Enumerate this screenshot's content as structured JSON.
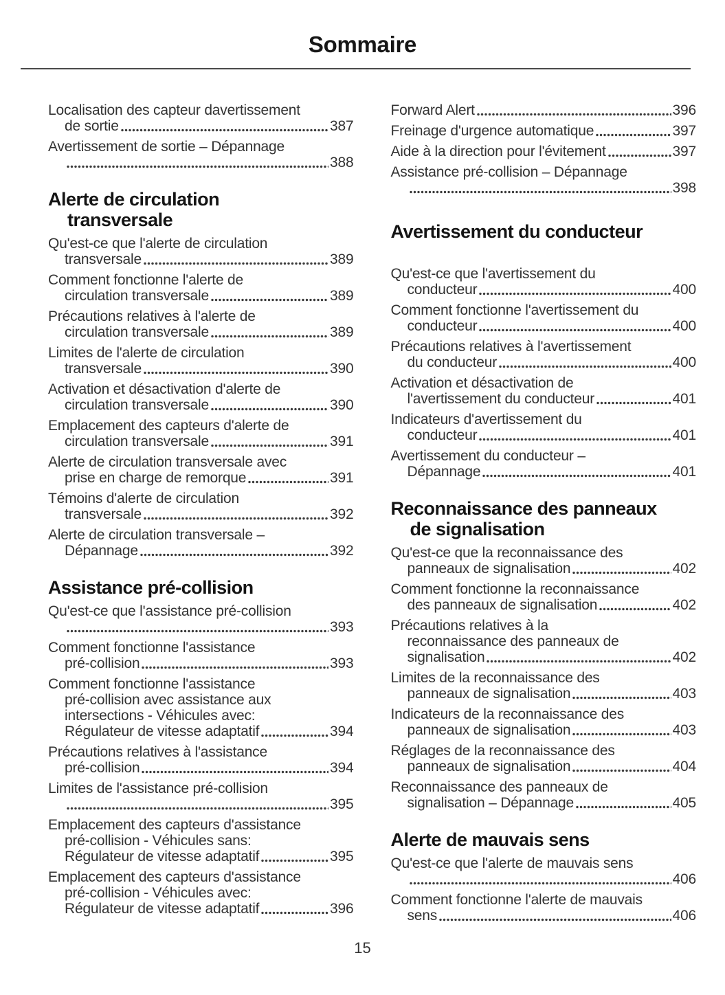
{
  "page": {
    "title": "Sommaire",
    "page_number": "15"
  },
  "columns": [
    {
      "name": "left",
      "blocks": [
        {
          "t": "entry",
          "lines": [
            "Localisation des capteur davertissement",
            "de sortie"
          ],
          "page": "387"
        },
        {
          "t": "entry",
          "lines": [
            "Avertissement de sortie – Dépannage",
            ""
          ],
          "page": "388"
        },
        {
          "t": "heading",
          "lines": [
            "Alerte de circulation",
            "transversale"
          ]
        },
        {
          "t": "entry",
          "lines": [
            "Qu'est-ce que l'alerte de circulation",
            "transversale"
          ],
          "page": "389"
        },
        {
          "t": "entry",
          "lines": [
            "Comment fonctionne l'alerte de",
            "circulation transversale"
          ],
          "page": "389"
        },
        {
          "t": "entry",
          "lines": [
            "Précautions relatives à l'alerte de",
            "circulation transversale"
          ],
          "page": "389"
        },
        {
          "t": "entry",
          "lines": [
            "Limites de l'alerte de circulation",
            "transversale"
          ],
          "page": "390"
        },
        {
          "t": "entry",
          "lines": [
            "Activation et désactivation d'alerte de",
            "circulation transversale"
          ],
          "page": "390"
        },
        {
          "t": "entry",
          "lines": [
            "Emplacement des capteurs d'alerte de",
            "circulation transversale"
          ],
          "page": "391"
        },
        {
          "t": "entry",
          "lines": [
            "Alerte de circulation transversale avec",
            "prise en charge de remorque"
          ],
          "page": "391"
        },
        {
          "t": "entry",
          "lines": [
            "Témoins d'alerte de circulation",
            "transversale"
          ],
          "page": "392"
        },
        {
          "t": "entry",
          "lines": [
            "Alerte de circulation transversale –",
            "Dépannage"
          ],
          "page": "392"
        },
        {
          "t": "heading",
          "lines": [
            "Assistance pré-collision"
          ]
        },
        {
          "t": "entry",
          "lines": [
            "Qu'est-ce que l'assistance pré-collision",
            ""
          ],
          "page": "393"
        },
        {
          "t": "entry",
          "lines": [
            "Comment fonctionne l'assistance",
            "pré-collision"
          ],
          "page": "393"
        },
        {
          "t": "entry",
          "lines": [
            "Comment fonctionne l'assistance",
            "pré-collision avec assistance aux",
            "intersections - Véhicules avec:",
            "Régulateur de vitesse adaptatif"
          ],
          "page": "394"
        },
        {
          "t": "entry",
          "lines": [
            "Précautions relatives à l'assistance",
            "pré-collision"
          ],
          "page": "394"
        },
        {
          "t": "entry",
          "lines": [
            "Limites de l'assistance pré-collision",
            ""
          ],
          "page": "395"
        },
        {
          "t": "entry",
          "lines": [
            "Emplacement des capteurs d'assistance",
            "pré-collision - Véhicules sans:",
            "Régulateur de vitesse adaptatif"
          ],
          "page": "395"
        },
        {
          "t": "entry",
          "lines": [
            "Emplacement des capteurs d'assistance",
            "pré-collision - Véhicules avec:",
            "Régulateur de vitesse adaptatif"
          ],
          "page": "396"
        }
      ]
    },
    {
      "name": "right",
      "blocks": [
        {
          "t": "entry",
          "lines": [
            "Forward Alert"
          ],
          "page": "396"
        },
        {
          "t": "entry",
          "lines": [
            "Freinage d'urgence automatique"
          ],
          "page": "397"
        },
        {
          "t": "entry",
          "lines": [
            "Aide à la direction pour l'évitement"
          ],
          "page": "397"
        },
        {
          "t": "entry",
          "lines": [
            "Assistance pré-collision – Dépannage",
            ""
          ],
          "page": "398"
        },
        {
          "t": "heading",
          "lines": [
            "Avertissement du conducteur"
          ],
          "gap_before": true,
          "gap_after": true
        },
        {
          "t": "entry",
          "lines": [
            "Qu'est-ce que l'avertissement du",
            "conducteur"
          ],
          "page": "400"
        },
        {
          "t": "entry",
          "lines": [
            "Comment fonctionne l'avertissement du",
            "conducteur"
          ],
          "page": "400"
        },
        {
          "t": "entry",
          "lines": [
            "Précautions relatives à l'avertissement",
            "du conducteur"
          ],
          "page": "400"
        },
        {
          "t": "entry",
          "lines": [
            "Activation et désactivation de",
            "l'avertissement du conducteur"
          ],
          "page": "401"
        },
        {
          "t": "entry",
          "lines": [
            "Indicateurs d'avertissement du",
            "conducteur"
          ],
          "page": "401"
        },
        {
          "t": "entry",
          "lines": [
            "Avertissement du conducteur –",
            "Dépannage"
          ],
          "page": "401"
        },
        {
          "t": "heading",
          "lines": [
            "Reconnaissance des panneaux",
            "de signalisation"
          ]
        },
        {
          "t": "entry",
          "lines": [
            "Qu'est-ce que la reconnaissance des",
            "panneaux de signalisation"
          ],
          "page": "402"
        },
        {
          "t": "entry",
          "lines": [
            "Comment fonctionne la reconnaissance",
            "des panneaux de signalisation"
          ],
          "page": "402"
        },
        {
          "t": "entry",
          "lines": [
            "Précautions relatives à la",
            "reconnaissance des panneaux de",
            "signalisation"
          ],
          "page": "402"
        },
        {
          "t": "entry",
          "lines": [
            "Limites de la reconnaissance des",
            "panneaux de signalisation"
          ],
          "page": "403"
        },
        {
          "t": "entry",
          "lines": [
            "Indicateurs de la reconnaissance des",
            "panneaux de signalisation"
          ],
          "page": "403"
        },
        {
          "t": "entry",
          "lines": [
            "Réglages de la reconnaissance des",
            "panneaux de signalisation"
          ],
          "page": "404"
        },
        {
          "t": "entry",
          "lines": [
            "Reconnaissance des panneaux de",
            "signalisation – Dépannage"
          ],
          "page": "405"
        },
        {
          "t": "heading",
          "lines": [
            "Alerte de mauvais sens"
          ]
        },
        {
          "t": "entry",
          "lines": [
            "Qu'est-ce que l'alerte de mauvais sens",
            ""
          ],
          "page": "406"
        },
        {
          "t": "entry",
          "lines": [
            "Comment fonctionne l'alerte de mauvais",
            "sens"
          ],
          "page": "406"
        }
      ]
    }
  ]
}
